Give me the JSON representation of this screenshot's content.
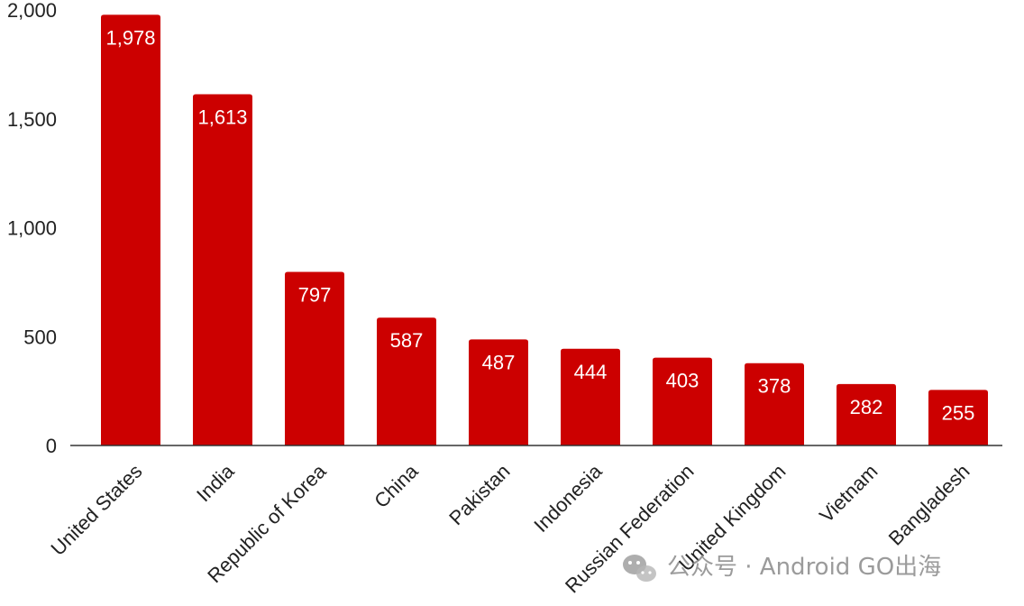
{
  "chart_data": {
    "type": "bar",
    "categories": [
      "United States",
      "India",
      "Republic of Korea",
      "China",
      "Pakistan",
      "Indonesia",
      "Russian Federation",
      "United Kingdom",
      "Vietnam",
      "Bangladesh"
    ],
    "values": [
      1978,
      1613,
      797,
      587,
      487,
      444,
      403,
      378,
      282,
      255
    ],
    "data_labels": [
      "1,978",
      "1,613",
      "797",
      "587",
      "487",
      "444",
      "403",
      "378",
      "282",
      "255"
    ],
    "yticks": [
      0,
      500,
      1000,
      1500,
      2000
    ],
    "ytick_labels": [
      "0",
      "500",
      "1,000",
      "1,500",
      "2,000"
    ],
    "ylim": [
      0,
      2000
    ],
    "title": "",
    "xlabel": "",
    "ylabel": "",
    "grid": false,
    "bar_color": "#cc0000"
  },
  "watermark": {
    "text": "公众号 · Android GO出海",
    "icon": "wechat-icon"
  }
}
